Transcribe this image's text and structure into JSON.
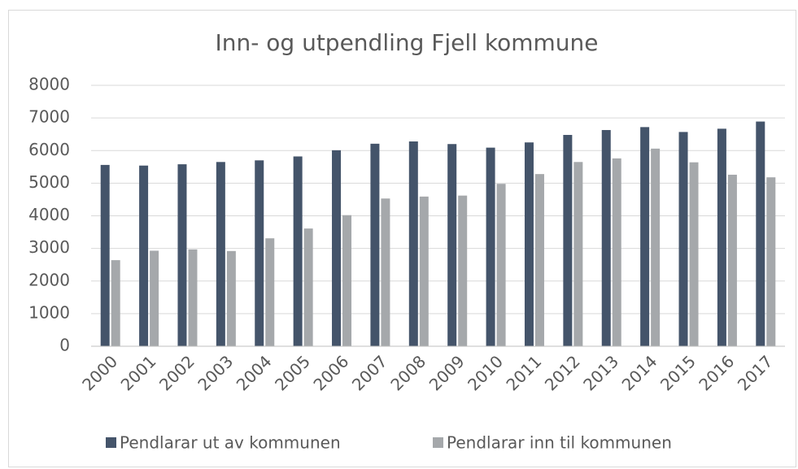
{
  "chart_data": {
    "type": "bar",
    "title": "Inn- og utpendling Fjell kommune",
    "categories": [
      "2000",
      "2001",
      "2002",
      "2003",
      "2004",
      "2005",
      "2006",
      "2007",
      "2008",
      "2009",
      "2010",
      "2011",
      "2012",
      "2013",
      "2014",
      "2015",
      "2016",
      "2017"
    ],
    "series": [
      {
        "name": "Pendlarar ut av kommunen",
        "color": "#44546a",
        "values": [
          5560,
          5540,
          5580,
          5650,
          5700,
          5820,
          6010,
          6210,
          6280,
          6200,
          6090,
          6250,
          6480,
          6630,
          6720,
          6570,
          6670,
          6890
        ]
      },
      {
        "name": "Pendlarar inn til kommunen",
        "color": "#a5a8ab",
        "values": [
          2640,
          2930,
          2970,
          2920,
          3310,
          3610,
          4020,
          4530,
          4590,
          4620,
          4980,
          5280,
          5650,
          5760,
          6060,
          5640,
          5260,
          5180
        ]
      }
    ],
    "ylim": [
      0,
      8000
    ],
    "yticks": [
      0,
      1000,
      2000,
      3000,
      4000,
      5000,
      6000,
      7000,
      8000
    ],
    "grid": true,
    "legend": "bottom"
  }
}
